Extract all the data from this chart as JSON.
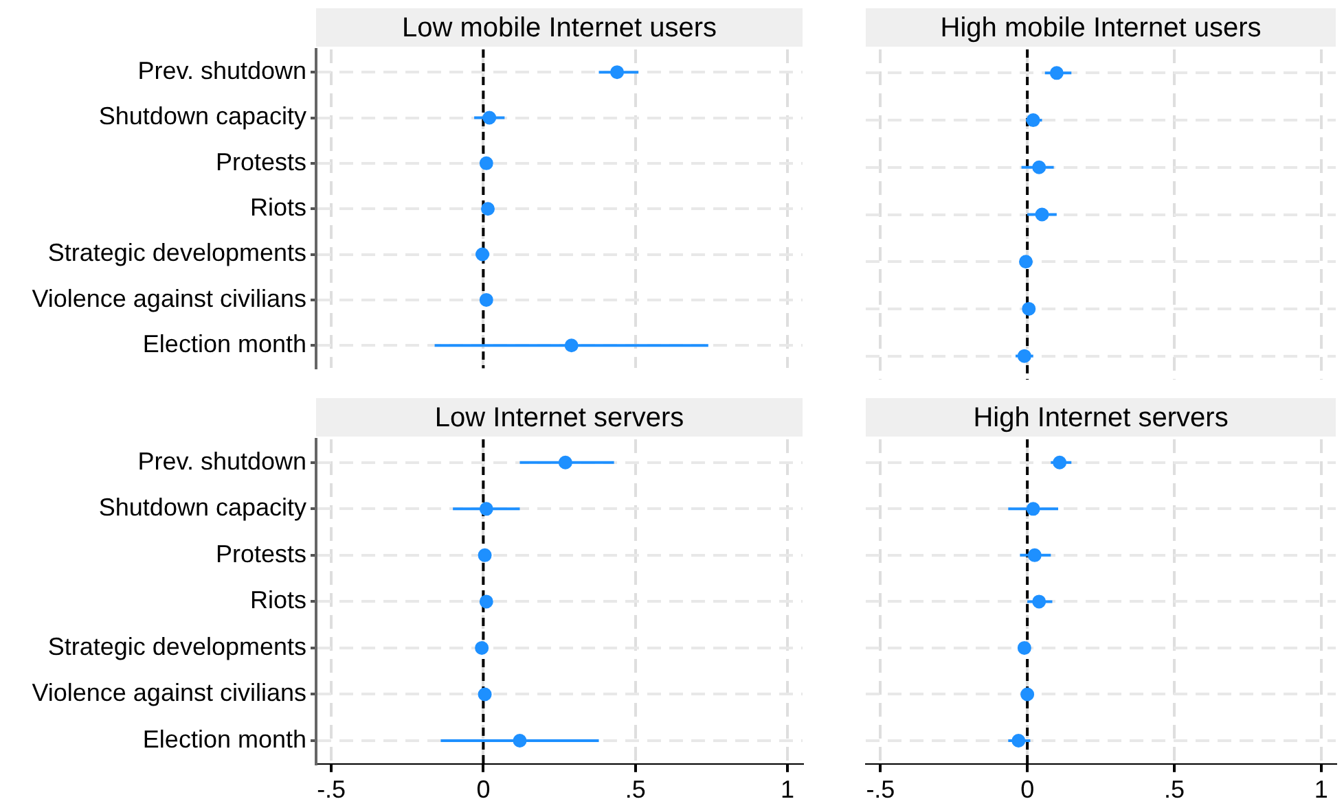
{
  "chart_data": [
    {
      "type": "scatter",
      "title": "Low mobile Internet users",
      "orientation": "horizontal",
      "categories": [
        "Prev. shutdown",
        "Shutdown capacity",
        "Protests",
        "Riots",
        "Strategic developments",
        "Violence against civilians",
        "Election month"
      ],
      "series": [
        {
          "color": "#1e90ff",
          "values": [
            0.44,
            0.02,
            0.01,
            0.015,
            -0.003,
            0.01,
            0.29
          ],
          "errors": [
            [
              0.38,
              0.51
            ],
            [
              -0.03,
              0.07
            ],
            null,
            [
              0.005,
              0.025
            ],
            [
              -0.025,
              0.02
            ],
            null,
            [
              -0.16,
              0.74
            ]
          ]
        }
      ],
      "xlim": [
        -0.55,
        1.05
      ],
      "xticks": [
        {
          "value": -0.5,
          "label": null
        },
        {
          "value": 0,
          "label": null
        },
        {
          "value": 0.5,
          "label": null
        },
        {
          "value": 1,
          "label": null
        }
      ],
      "ref_lines": [
        {
          "axis": "x",
          "value": 0,
          "color": "#000000",
          "line_style": "dashed"
        }
      ],
      "grid": true,
      "marker": "circle",
      "tick_labels": "y"
    },
    {
      "type": "scatter",
      "title": "High mobile Internet users",
      "orientation": "horizontal",
      "categories": [
        null,
        null,
        null,
        null,
        null,
        null,
        null
      ],
      "series": [
        {
          "color": "#1e90ff",
          "values": [
            0.1,
            0.02,
            0.04,
            0.05,
            -0.005,
            0.005,
            -0.01
          ],
          "errors": [
            [
              0.06,
              0.15
            ],
            [
              -0.005,
              0.05
            ],
            [
              -0.02,
              0.09
            ],
            [
              0,
              0.1
            ],
            null,
            null,
            [
              -0.04,
              0.02
            ]
          ]
        }
      ],
      "xlim": [
        -0.55,
        1.05
      ],
      "xticks": [
        {
          "value": -0.5,
          "label": null
        },
        {
          "value": 0,
          "label": null
        },
        {
          "value": 0.5,
          "label": null
        },
        {
          "value": 1,
          "label": null
        }
      ],
      "ref_lines": [
        {
          "axis": "x",
          "value": 0,
          "color": "#000000",
          "line_style": "dashed"
        }
      ],
      "grid": true,
      "marker": "circle",
      "tick_labels": false
    },
    {
      "type": "scatter",
      "title": "Low Internet servers",
      "orientation": "horizontal",
      "categories": [
        "Prev. shutdown",
        "Shutdown capacity",
        "Protests",
        "Riots",
        "Strategic developments",
        "Violence against civilians",
        "Election month"
      ],
      "series": [
        {
          "color": "#1e90ff",
          "values": [
            0.27,
            0.01,
            0.005,
            0.01,
            -0.005,
            0.005,
            0.12
          ],
          "errors": [
            [
              0.12,
              0.43
            ],
            [
              -0.1,
              0.12
            ],
            null,
            null,
            [
              -0.02,
              0.01
            ],
            null,
            [
              -0.14,
              0.38
            ]
          ]
        }
      ],
      "xlim": [
        -0.55,
        1.05
      ],
      "xticks": [
        {
          "value": -0.5,
          "label": "-.5"
        },
        {
          "value": 0,
          "label": "0"
        },
        {
          "value": 0.5,
          "label": ".5"
        },
        {
          "value": 1,
          "label": "1"
        }
      ],
      "ref_lines": [
        {
          "axis": "x",
          "value": 0,
          "color": "#000000",
          "line_style": "dashed"
        }
      ],
      "grid": true,
      "marker": "circle"
    },
    {
      "type": "scatter",
      "title": "High Internet servers",
      "orientation": "horizontal",
      "categories": [
        null,
        null,
        null,
        null,
        null,
        null,
        null
      ],
      "series": [
        {
          "color": "#1e90ff",
          "values": [
            0.11,
            0.02,
            0.025,
            0.04,
            -0.01,
            0,
            -0.03
          ],
          "errors": [
            [
              0.08,
              0.15
            ],
            [
              -0.065,
              0.105
            ],
            [
              -0.025,
              0.08
            ],
            [
              0,
              0.085
            ],
            null,
            null,
            [
              -0.065,
              0.01
            ]
          ]
        }
      ],
      "xlim": [
        -0.55,
        1.05
      ],
      "xticks": [
        {
          "value": -0.5,
          "label": "-.5"
        },
        {
          "value": 0,
          "label": "0"
        },
        {
          "value": 0.5,
          "label": ".5"
        },
        {
          "value": 1,
          "label": "1"
        }
      ],
      "ref_lines": [
        {
          "axis": "x",
          "value": 0,
          "color": "#000000",
          "line_style": "dashed"
        }
      ],
      "grid": true,
      "marker": "circle",
      "tick_labels": "x"
    }
  ]
}
